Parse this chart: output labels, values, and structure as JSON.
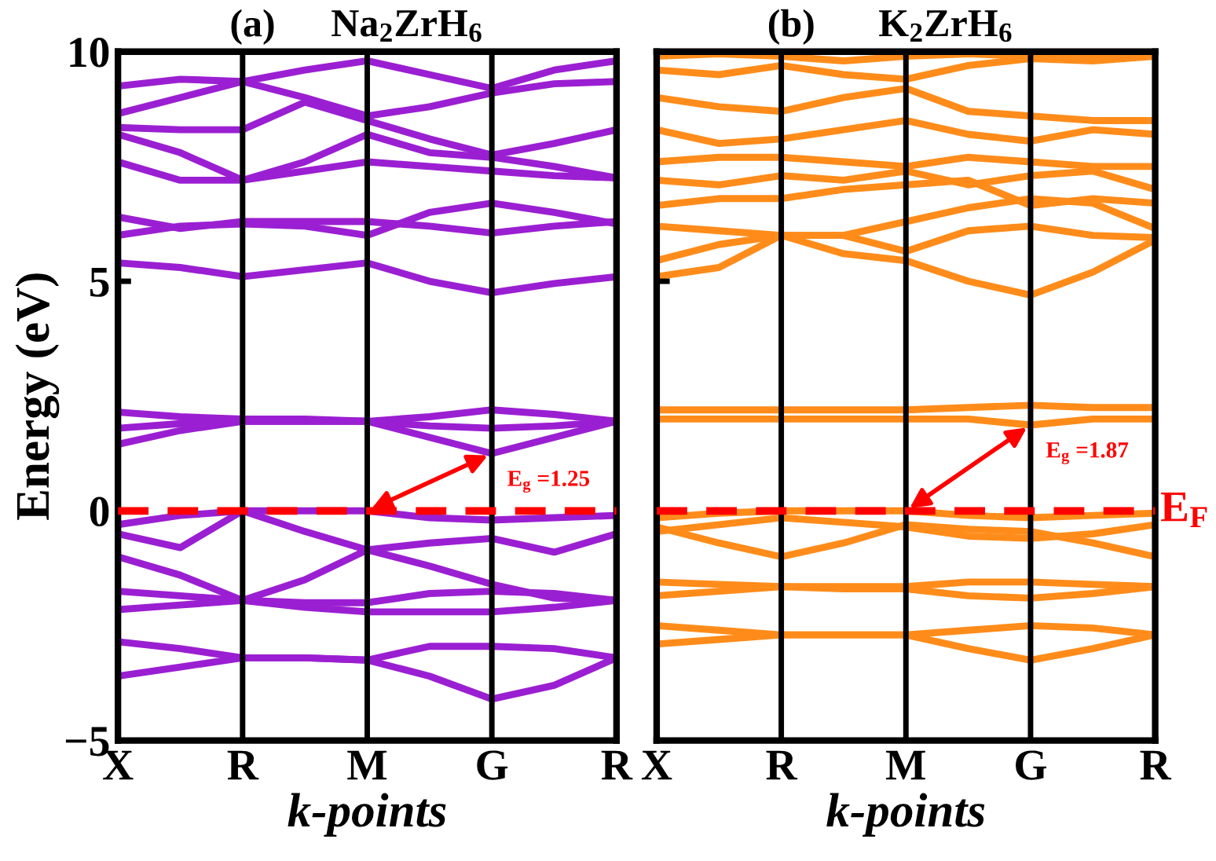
{
  "chart_data": [
    {
      "type": "line",
      "title": "(a)",
      "subtitle": "Na$_{2}$ZrH$_{6}$",
      "xlabel": "k-points",
      "ylabel": "Energy (eV)",
      "categories": [
        "X",
        null,
        "R",
        null,
        "M",
        null,
        "G",
        null,
        "R"
      ],
      "ylim": [
        -5,
        10
      ],
      "yticks": [
        {
          "value": -5,
          "label": "−5"
        },
        0,
        5,
        10
      ],
      "legend": false,
      "grid": "x",
      "marker": "none",
      "line_style": "solid",
      "ref_lines": [
        {
          "axis": "y",
          "value": 0,
          "label": null,
          "color": "#ff0000",
          "line_style": "dashed"
        }
      ],
      "annotations": [
        {
          "text": "E$_{g}$ =1.25",
          "x": "G",
          "y": 1.25
        }
      ],
      "series": [
        {
          "color": "#9b1fd2",
          "values": [
            -0.3,
            -0.1,
            0,
            0,
            0,
            -0.15,
            -0.2,
            -0.15,
            -0.1
          ]
        },
        {
          "color": "#9b1fd2",
          "values": [
            -0.5,
            -0.8,
            0,
            -0.45,
            -0.85,
            -0.7,
            -0.6,
            -0.9,
            -0.5
          ]
        },
        {
          "color": "#9b1fd2",
          "values": [
            -1.0,
            -1.4,
            -1.95,
            -1.5,
            -0.85,
            -1.2,
            -1.6,
            -1.9,
            -1.95
          ]
        },
        {
          "color": "#9b1fd2",
          "values": [
            -1.75,
            -1.85,
            -1.95,
            -2.0,
            -2.0,
            -1.8,
            -1.75,
            -1.8,
            -1.95
          ]
        },
        {
          "color": "#9b1fd2",
          "values": [
            -2.15,
            -2.05,
            -1.95,
            -2.1,
            -2.2,
            -2.2,
            -2.2,
            -2.1,
            -1.95
          ]
        },
        {
          "color": "#9b1fd2",
          "values": [
            -2.85,
            -3.0,
            -3.2,
            -3.2,
            -3.25,
            -2.95,
            -2.95,
            -3.0,
            -3.2
          ]
        },
        {
          "color": "#9b1fd2",
          "values": [
            -3.6,
            -3.4,
            -3.2,
            -3.2,
            -3.25,
            -3.6,
            -4.1,
            -3.8,
            -3.2
          ]
        },
        {
          "color": "#9b1fd2",
          "values": [
            2.15,
            2.05,
            2.0,
            2.0,
            1.95,
            2.05,
            2.2,
            2.1,
            1.95
          ]
        },
        {
          "color": "#9b1fd2",
          "values": [
            1.8,
            1.9,
            1.95,
            1.95,
            1.95,
            1.6,
            1.25,
            1.6,
            1.95
          ]
        },
        {
          "color": "#9b1fd2",
          "values": [
            1.45,
            1.75,
            1.95,
            1.95,
            1.95,
            1.85,
            1.8,
            1.85,
            1.95
          ]
        },
        {
          "color": "#9b1fd2",
          "values": [
            5.4,
            5.3,
            5.1,
            5.25,
            5.4,
            5.0,
            4.75,
            4.95,
            5.1
          ]
        },
        {
          "color": "#9b1fd2",
          "values": [
            6.4,
            6.15,
            6.3,
            6.3,
            6.3,
            6.2,
            6.05,
            6.2,
            6.3
          ]
        },
        {
          "color": "#9b1fd2",
          "values": [
            6.0,
            6.2,
            6.25,
            6.2,
            6.0,
            6.5,
            6.7,
            6.5,
            6.25
          ]
        },
        {
          "color": "#9b1fd2",
          "values": [
            7.6,
            7.2,
            7.2,
            7.4,
            7.6,
            7.5,
            7.4,
            7.3,
            7.25
          ]
        },
        {
          "color": "#9b1fd2",
          "values": [
            8.2,
            7.8,
            7.2,
            7.6,
            8.2,
            7.8,
            7.7,
            7.5,
            7.25
          ]
        },
        {
          "color": "#9b1fd2",
          "values": [
            8.35,
            8.3,
            8.3,
            8.9,
            8.5,
            8.1,
            7.75,
            8.0,
            8.3
          ]
        },
        {
          "color": "#9b1fd2",
          "values": [
            8.65,
            9.0,
            9.35,
            9.0,
            8.6,
            8.8,
            9.1,
            9.3,
            9.35
          ]
        },
        {
          "color": "#9b1fd2",
          "values": [
            9.25,
            9.4,
            9.35,
            9.6,
            9.8,
            9.5,
            9.2,
            9.6,
            9.8
          ]
        }
      ]
    },
    {
      "type": "line",
      "title": "(b)",
      "subtitle": "K$_{2}$ZrH$_{6}$",
      "xlabel": "k-points",
      "categories": [
        "X",
        null,
        "R",
        null,
        "M",
        null,
        "G",
        null,
        "R"
      ],
      "ylim": [
        -5,
        10
      ],
      "yticks": [
        {
          "value": -5,
          "label": null
        },
        {
          "value": 0,
          "label": null
        },
        {
          "value": 5,
          "label": null
        },
        {
          "value": 10,
          "label": null
        }
      ],
      "tick_labels": "x",
      "legend": false,
      "grid": "x",
      "marker": "none",
      "line_style": "solid",
      "ref_lines": [
        {
          "axis": "y",
          "value": 0,
          "label": "E$_{F}$",
          "color": "#ff0000",
          "line_style": "dashed"
        }
      ],
      "annotations": [
        {
          "text": "E$_{g}$ =1.87",
          "x": "G",
          "y": 1.87
        }
      ],
      "series": [
        {
          "color": "#ff8c1a",
          "values": [
            -0.15,
            -0.05,
            0,
            0,
            0,
            -0.1,
            -0.15,
            -0.1,
            -0.05
          ]
        },
        {
          "color": "#ff8c1a",
          "values": [
            -0.35,
            -0.7,
            -1.0,
            -0.7,
            -0.3,
            -0.4,
            -0.45,
            -0.7,
            -1.0
          ]
        },
        {
          "color": "#ff8c1a",
          "values": [
            -0.45,
            -0.3,
            -0.15,
            -0.25,
            -0.35,
            -0.55,
            -0.6,
            -0.5,
            -0.3
          ]
        },
        {
          "color": "#ff8c1a",
          "values": [
            -1.55,
            -1.6,
            -1.65,
            -1.65,
            -1.65,
            -1.55,
            -1.55,
            -1.6,
            -1.65
          ]
        },
        {
          "color": "#ff8c1a",
          "values": [
            -1.85,
            -1.75,
            -1.65,
            -1.7,
            -1.7,
            -1.85,
            -1.9,
            -1.8,
            -1.65
          ]
        },
        {
          "color": "#ff8c1a",
          "values": [
            -2.5,
            -2.6,
            -2.7,
            -2.7,
            -2.7,
            -2.6,
            -2.5,
            -2.55,
            -2.7
          ]
        },
        {
          "color": "#ff8c1a",
          "values": [
            -2.9,
            -2.8,
            -2.7,
            -2.7,
            -2.7,
            -3.0,
            -3.25,
            -3.0,
            -2.7
          ]
        },
        {
          "color": "#ff8c1a",
          "values": [
            2.2,
            2.2,
            2.2,
            2.2,
            2.2,
            2.25,
            2.3,
            2.25,
            2.25
          ]
        },
        {
          "color": "#ff8c1a",
          "values": [
            2.0,
            2.0,
            2.0,
            2.0,
            2.0,
            2.0,
            1.87,
            2.0,
            2.0
          ]
        },
        {
          "color": "#ff8c1a",
          "values": [
            5.1,
            5.3,
            6.0,
            5.6,
            5.45,
            5.0,
            4.7,
            5.2,
            5.9
          ]
        },
        {
          "color": "#ff8c1a",
          "values": [
            5.45,
            5.8,
            6.0,
            6.0,
            5.65,
            6.1,
            6.2,
            6.0,
            5.95
          ]
        },
        {
          "color": "#ff8c1a",
          "values": [
            6.2,
            6.1,
            6.0,
            6.0,
            6.3,
            6.6,
            6.8,
            6.7,
            6.15
          ]
        },
        {
          "color": "#ff8c1a",
          "values": [
            6.65,
            6.8,
            6.8,
            7.0,
            7.1,
            7.2,
            6.65,
            6.8,
            6.7
          ]
        },
        {
          "color": "#ff8c1a",
          "values": [
            7.2,
            7.1,
            7.3,
            7.2,
            7.4,
            7.1,
            7.3,
            7.4,
            7.0
          ]
        },
        {
          "color": "#ff8c1a",
          "values": [
            7.6,
            7.7,
            7.7,
            7.6,
            7.5,
            7.7,
            7.6,
            7.5,
            7.5
          ]
        },
        {
          "color": "#ff8c1a",
          "values": [
            8.3,
            8.0,
            8.1,
            8.3,
            8.5,
            8.2,
            8.05,
            8.3,
            8.2
          ]
        },
        {
          "color": "#ff8c1a",
          "values": [
            9.0,
            8.8,
            8.7,
            9.0,
            9.2,
            8.7,
            8.6,
            8.5,
            8.5
          ]
        },
        {
          "color": "#ff8c1a",
          "values": [
            9.6,
            9.5,
            9.7,
            9.5,
            9.4,
            9.7,
            9.85,
            9.8,
            9.9
          ]
        },
        {
          "color": "#ff8c1a",
          "values": [
            9.9,
            9.95,
            9.9,
            9.8,
            9.9,
            9.95,
            9.9,
            9.9,
            9.95
          ]
        }
      ]
    }
  ]
}
